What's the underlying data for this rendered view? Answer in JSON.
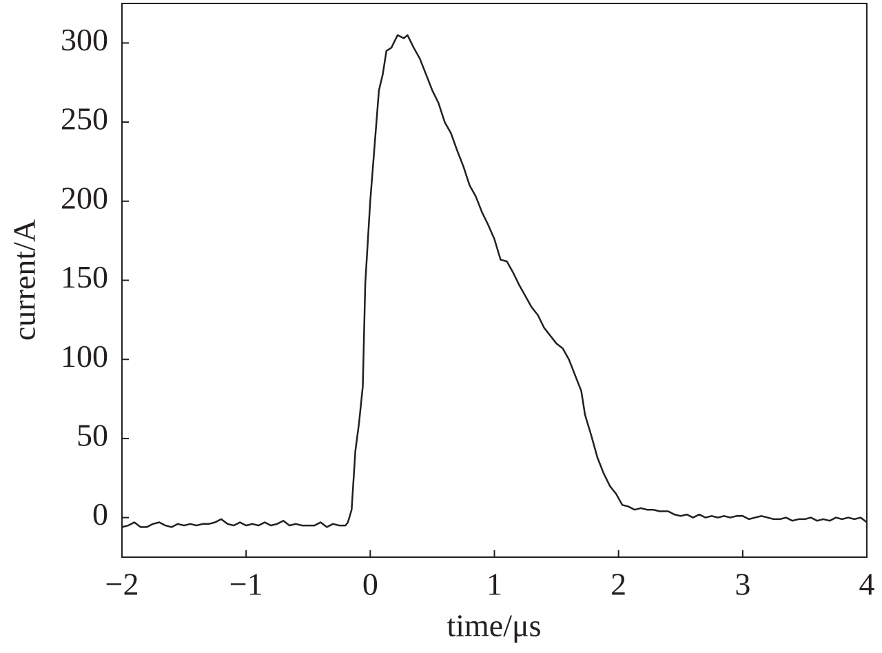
{
  "chart_data": {
    "type": "line",
    "x_label": "time/μs",
    "y_label": "current/A",
    "xlim": [
      -2,
      4
    ],
    "ylim": [
      -25,
      325
    ],
    "xticks": [
      {
        "value": -2,
        "label": "−2"
      },
      {
        "value": -1,
        "label": "−1"
      },
      0,
      1,
      2,
      3,
      4
    ],
    "yticks": [
      0,
      50,
      100,
      150,
      200,
      250,
      300
    ],
    "grid": false,
    "series": [
      {
        "color": "#231f20",
        "x": [
          -2,
          -1.95,
          -1.9,
          -1.85,
          -1.8,
          -1.75,
          -1.7,
          -1.65,
          -1.6,
          -1.55,
          -1.5,
          -1.45,
          -1.4,
          -1.35,
          -1.3,
          -1.25,
          -1.2,
          -1.15,
          -1.1,
          -1.05,
          -1.0,
          -0.95,
          -0.9,
          -0.85,
          -0.8,
          -0.75,
          -0.7,
          -0.65,
          -0.6,
          -0.55,
          -0.5,
          -0.45,
          -0.4,
          -0.35,
          -0.3,
          -0.25,
          -0.2,
          -0.18,
          -0.15,
          -0.12,
          -0.09,
          -0.06,
          -0.04,
          0.0,
          0.02,
          0.04,
          0.07,
          0.1,
          0.13,
          0.17,
          0.22,
          0.27,
          0.3,
          0.35,
          0.4,
          0.45,
          0.5,
          0.55,
          0.6,
          0.65,
          0.7,
          0.75,
          0.8,
          0.85,
          0.9,
          0.95,
          1.0,
          1.05,
          1.1,
          1.15,
          1.2,
          1.25,
          1.3,
          1.35,
          1.4,
          1.45,
          1.5,
          1.55,
          1.6,
          1.65,
          1.7,
          1.73,
          1.78,
          1.83,
          1.88,
          1.93,
          1.98,
          2.03,
          2.08,
          2.13,
          2.18,
          2.23,
          2.28,
          2.33,
          2.4,
          2.45,
          2.5,
          2.55,
          2.6,
          2.65,
          2.7,
          2.75,
          2.8,
          2.85,
          2.9,
          2.95,
          3.0,
          3.05,
          3.1,
          3.15,
          3.2,
          3.25,
          3.3,
          3.35,
          3.4,
          3.45,
          3.5,
          3.55,
          3.6,
          3.65,
          3.7,
          3.75,
          3.8,
          3.85,
          3.9,
          3.95,
          4.0
        ],
        "values": [
          -6,
          -5,
          -3,
          -6,
          -6,
          -4,
          -3,
          -5,
          -6,
          -4,
          -5,
          -4,
          -5,
          -4,
          -4,
          -3,
          -1,
          -4,
          -5,
          -3,
          -5,
          -4,
          -5,
          -3,
          -5,
          -4,
          -2,
          -5,
          -4,
          -5,
          -5,
          -5,
          -3,
          -6,
          -4,
          -5,
          -5,
          -3,
          5,
          42,
          60,
          83,
          148,
          200,
          220,
          240,
          270,
          280,
          295,
          297,
          305,
          303,
          305,
          297,
          290,
          280,
          270,
          262,
          250,
          243,
          232,
          222,
          210,
          203,
          193,
          185,
          176,
          163,
          162,
          155,
          147,
          140,
          133,
          128,
          120,
          115,
          110,
          107,
          100,
          90,
          80,
          65,
          52,
          38,
          28,
          20,
          15,
          8,
          7,
          5,
          6,
          5,
          5,
          4,
          4,
          2,
          1,
          2,
          0,
          2,
          0,
          1,
          0,
          1,
          0,
          1,
          1,
          -1,
          0,
          1,
          0,
          -1,
          -1,
          0,
          -2,
          -1,
          -1,
          0,
          -2,
          -1,
          -2,
          0,
          -1,
          0,
          -1,
          0,
          -3
        ]
      }
    ]
  }
}
